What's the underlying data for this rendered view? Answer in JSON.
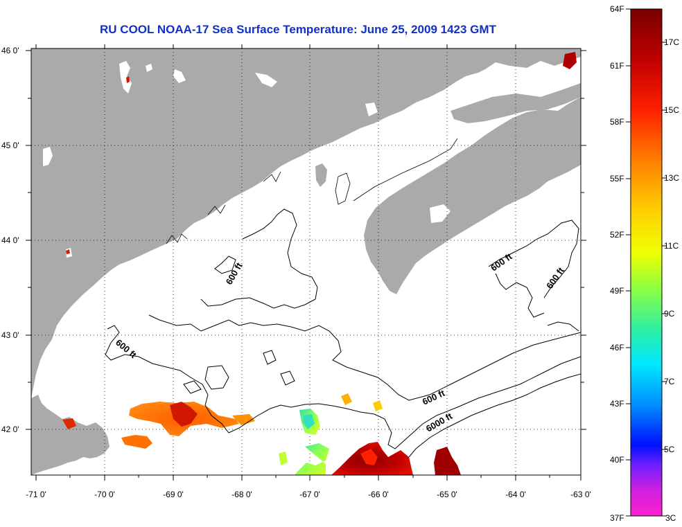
{
  "title": "RU COOL  NOAA-17  Sea Surface Temperature:  June 25, 2009 1423 GMT",
  "colors": {
    "land": "#aaaaaa",
    "title": "#1030c8",
    "missing_data": "#ffffff"
  },
  "map": {
    "lon_range": [
      -71,
      -63
    ],
    "lat_range": [
      41.5,
      46.1
    ],
    "lon_ticks": [
      "-71 0'",
      "-70 0'",
      "-69 0'",
      "-68 0'",
      "-67 0'",
      "-66 0'",
      "-65 0'",
      "-64 0'",
      "-63 0'"
    ],
    "lat_ticks": [
      "46 0'",
      "45 0'",
      "44 0'",
      "43 0'",
      "42 0'"
    ],
    "grid": "dotted",
    "contour_labels": [
      "600 ft",
      "600 ft",
      "600 ft",
      "600 ft",
      "600 ft",
      "6000 ft"
    ]
  },
  "colorbar": {
    "fahrenheit_labels": [
      "64F",
      "61F",
      "58F",
      "55F",
      "52F",
      "49F",
      "46F",
      "43F",
      "40F",
      "37F"
    ],
    "celsius_labels": [
      "17C",
      "15C",
      "13C",
      "11C",
      "9C",
      "7C",
      "5C",
      "3C"
    ]
  }
}
